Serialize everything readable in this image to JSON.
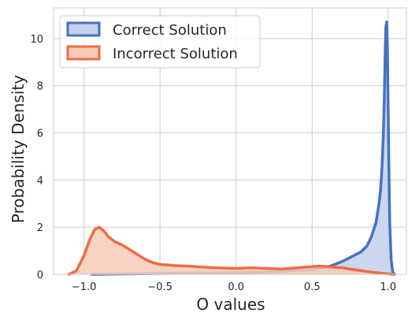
{
  "chart_data": {
    "type": "area",
    "xlabel": "O values",
    "ylabel": "Probability Density",
    "xlim": [
      -1.2,
      1.12
    ],
    "ylim": [
      0,
      11.3
    ],
    "xticks": [
      -1.0,
      -0.5,
      0.0,
      0.5,
      1.0
    ],
    "xtick_labels": [
      "−1.0",
      "−0.5",
      "0.0",
      "0.5",
      "1.0"
    ],
    "yticks": [
      0,
      2,
      4,
      6,
      8,
      10
    ],
    "ytick_labels": [
      "0",
      "2",
      "4",
      "6",
      "8",
      "10"
    ],
    "grid": true,
    "legend_position": "top-left",
    "series": [
      {
        "name": "Correct Solution",
        "color": "#4472c4",
        "fill": "#c3d0ec",
        "x": [
          -0.95,
          -0.6,
          -0.2,
          0.2,
          0.5,
          0.62,
          0.7,
          0.76,
          0.82,
          0.86,
          0.89,
          0.92,
          0.94,
          0.95,
          0.96,
          0.97,
          0.975,
          0.98,
          0.985,
          0.99,
          0.995,
          1.0,
          1.005,
          1.01,
          1.02,
          1.03,
          1.04
        ],
        "y": [
          0.0,
          0.03,
          0.06,
          0.1,
          0.2,
          0.35,
          0.55,
          0.75,
          0.95,
          1.2,
          1.6,
          2.2,
          3.0,
          3.6,
          4.6,
          6.2,
          7.6,
          9.4,
          10.5,
          10.7,
          9.6,
          7.0,
          4.4,
          2.2,
          0.6,
          0.1,
          0.0
        ]
      },
      {
        "name": "Incorrect Solution",
        "color": "#ee6d42",
        "fill": "#f7cab9",
        "x": [
          -1.1,
          -1.05,
          -1.0,
          -0.96,
          -0.93,
          -0.9,
          -0.87,
          -0.84,
          -0.8,
          -0.75,
          -0.7,
          -0.65,
          -0.6,
          -0.55,
          -0.5,
          -0.4,
          -0.3,
          -0.2,
          -0.1,
          0.0,
          0.1,
          0.2,
          0.3,
          0.4,
          0.5,
          0.55,
          0.6,
          0.65,
          0.7,
          0.75,
          0.8,
          0.85,
          0.9,
          0.95,
          1.0,
          1.03
        ],
        "y": [
          0.0,
          0.15,
          0.8,
          1.5,
          1.9,
          2.0,
          1.85,
          1.6,
          1.4,
          1.25,
          1.05,
          0.85,
          0.65,
          0.5,
          0.42,
          0.37,
          0.34,
          0.3,
          0.27,
          0.25,
          0.28,
          0.25,
          0.23,
          0.28,
          0.33,
          0.35,
          0.33,
          0.3,
          0.28,
          0.22,
          0.18,
          0.13,
          0.09,
          0.05,
          0.02,
          0.0
        ]
      }
    ]
  }
}
